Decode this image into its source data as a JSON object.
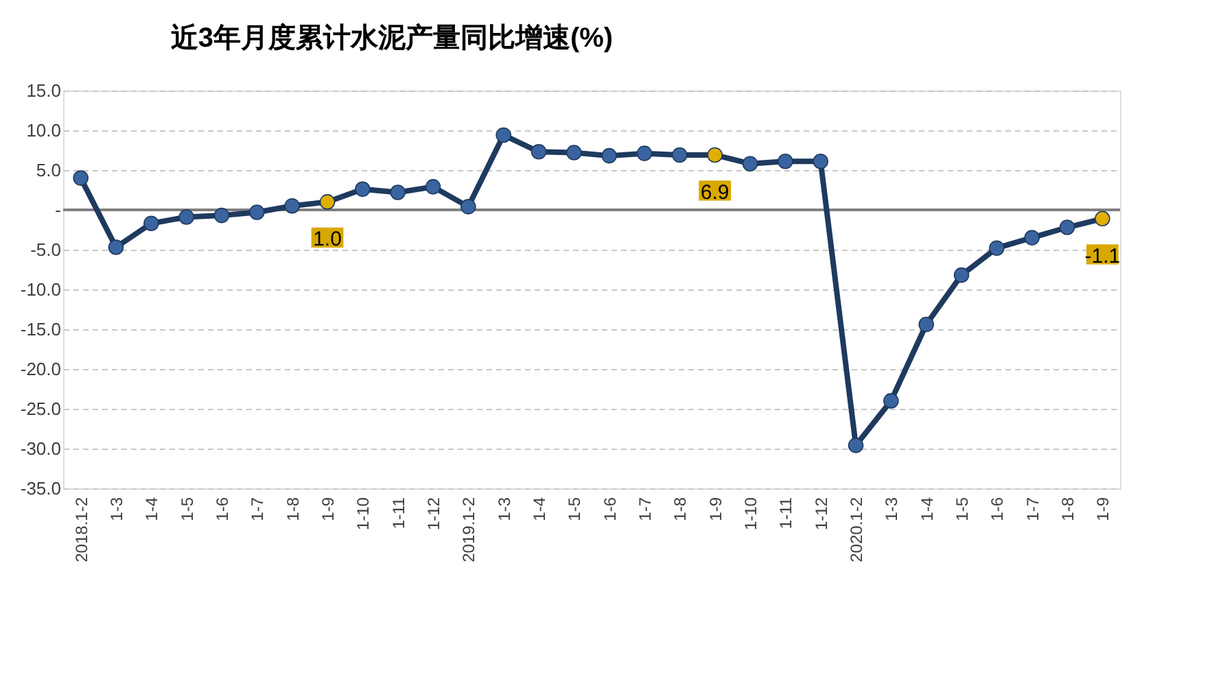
{
  "chart_data": {
    "type": "line",
    "title": "近3年月度累计水泥产量同比增速(%)",
    "categories": [
      "2018.1-2",
      "1-3",
      "1-4",
      "1-5",
      "1-6",
      "1-7",
      "1-8",
      "1-9",
      "1-10",
      "1-11",
      "1-12",
      "2019.1-2",
      "1-3",
      "1-4",
      "1-5",
      "1-6",
      "1-7",
      "1-8",
      "1-9",
      "1-10",
      "1-11",
      "1-12",
      "2020.1-2",
      "1-3",
      "1-4",
      "1-5",
      "1-6",
      "1-7",
      "1-8",
      "1-9"
    ],
    "series": [
      {
        "color": "#1f3a5f",
        "colors": [
          "#3a64a0",
          "#3a64a0",
          "#3a64a0",
          "#3a64a0",
          "#3a64a0",
          "#3a64a0",
          "#3a64a0",
          "#e0b000",
          "#3a64a0",
          "#3a64a0",
          "#3a64a0",
          "#3a64a0",
          "#3a64a0",
          "#3a64a0",
          "#3a64a0",
          "#3a64a0",
          "#3a64a0",
          "#3a64a0",
          "#e0b000",
          "#3a64a0",
          "#3a64a0",
          "#3a64a0",
          "#3a64a0",
          "#3a64a0",
          "#3a64a0",
          "#3a64a0",
          "#3a64a0",
          "#3a64a0",
          "#3a64a0",
          "#e0b000"
        ],
        "values": [
          4.0,
          -4.7,
          -1.7,
          -0.9,
          -0.7,
          -0.3,
          0.5,
          1.0,
          2.6,
          2.2,
          2.9,
          0.4,
          9.4,
          7.3,
          7.2,
          6.8,
          7.1,
          6.9,
          6.9,
          5.8,
          6.1,
          6.1,
          -29.6,
          -24.0,
          -14.4,
          -8.2,
          -4.8,
          -3.5,
          -2.2,
          -1.1
        ],
        "value_labels": [
          null,
          null,
          null,
          null,
          null,
          null,
          null,
          "1.0",
          null,
          null,
          null,
          null,
          null,
          null,
          null,
          null,
          null,
          null,
          "6.9",
          null,
          null,
          null,
          null,
          null,
          null,
          null,
          null,
          null,
          null,
          "-1.1"
        ]
      }
    ],
    "ylim": [
      -35,
      15
    ],
    "yticks": [
      {
        "value": 15,
        "label": "15.0"
      },
      {
        "value": 10,
        "label": "10.0"
      },
      {
        "value": 5,
        "label": "5.0"
      },
      {
        "value": 0,
        "label": "-"
      },
      {
        "value": -5,
        "label": "-5.0"
      },
      {
        "value": -10,
        "label": "-10.0"
      },
      {
        "value": -15,
        "label": "-15.0"
      },
      {
        "value": -20,
        "label": "-20.0"
      },
      {
        "value": -25,
        "label": "-25.0"
      },
      {
        "value": -30,
        "label": "-30.0"
      },
      {
        "value": -35,
        "label": "-35.0"
      }
    ],
    "ref_lines": [
      {
        "axis": "y",
        "value": 0,
        "color": "#808080"
      }
    ],
    "grid": "y",
    "marker": "circle",
    "line_style": "solid"
  }
}
